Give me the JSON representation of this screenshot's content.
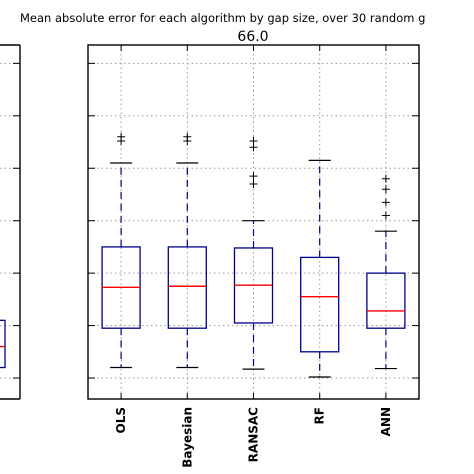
{
  "figure": {
    "suptitle": "Mean absolute error for each algorithm by gap size, over 30 random g"
  },
  "chart_data": {
    "type": "box",
    "title": "66.0",
    "xlabel": "",
    "ylabel": "",
    "grid": true,
    "categories": [
      "OLS",
      "Bayesian",
      "RANSAC",
      "RF",
      "ANN"
    ],
    "boxes": [
      {
        "label": "OLS",
        "whisker_low": 1.4,
        "q1": 2.15,
        "median": 2.93,
        "q3": 3.7,
        "whisker_high": 5.3,
        "outliers": [
          5.72,
          5.8
        ]
      },
      {
        "label": "Bayesian",
        "whisker_low": 1.4,
        "q1": 2.15,
        "median": 2.95,
        "q3": 3.7,
        "whisker_high": 5.3,
        "outliers": [
          5.72,
          5.8
        ]
      },
      {
        "label": "RANSAC",
        "whisker_low": 1.37,
        "q1": 2.25,
        "median": 2.97,
        "q3": 3.68,
        "whisker_high": 4.2,
        "outliers": [
          4.9,
          5.05,
          5.6,
          5.72
        ]
      },
      {
        "label": "RF",
        "whisker_low": 1.22,
        "q1": 1.7,
        "median": 2.75,
        "q3": 3.5,
        "whisker_high": 5.35,
        "outliers": []
      },
      {
        "label": "ANN",
        "whisker_low": 1.38,
        "q1": 2.15,
        "median": 2.48,
        "q3": 3.2,
        "whisker_high": 4.0,
        "outliers": [
          4.3,
          4.55,
          4.8,
          5.0
        ]
      }
    ],
    "ylim": [
      0.8,
      7.55
    ],
    "yticks": [
      1.2,
      2.2,
      3.2,
      4.2,
      5.2,
      6.2,
      7.2
    ],
    "colors": {
      "box": "#00008b",
      "median": "#ff0000",
      "whisker": "#00008b",
      "outlier": "#000000",
      "frame": "#000000",
      "grid": "#9a9a9a"
    },
    "left_panel_partial": {
      "q1": 1.4,
      "median": 1.8,
      "q3": 2.3
    }
  }
}
